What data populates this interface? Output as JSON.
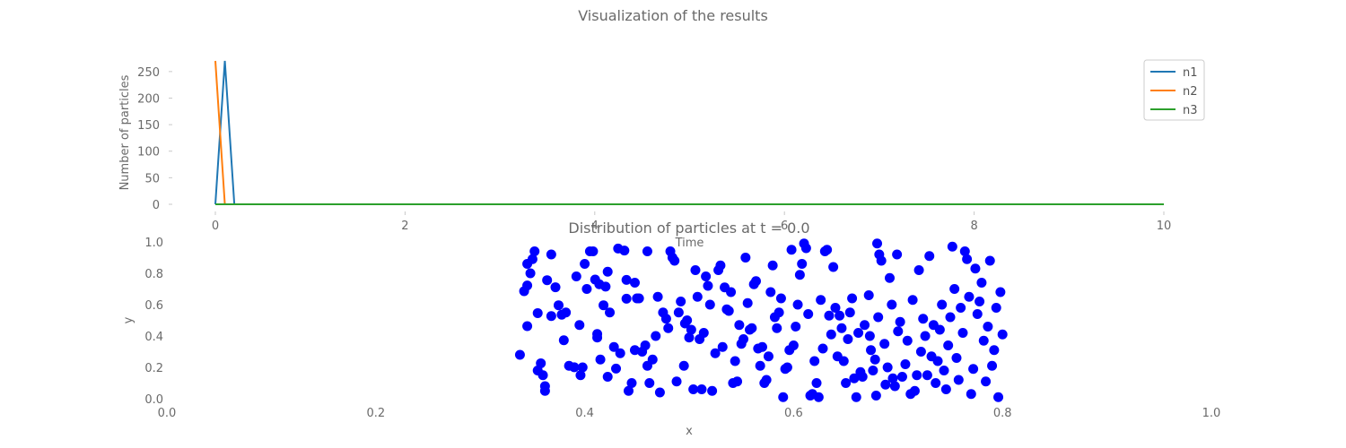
{
  "figure": {
    "suptitle": "Visualization of the results"
  },
  "chart_data": [
    {
      "type": "line",
      "title": "",
      "xlabel": "Time",
      "ylabel": "Number of particles",
      "xlim": [
        0,
        10
      ],
      "ylim": [
        0,
        270
      ],
      "xticks": [
        0,
        2,
        4,
        6,
        8,
        10
      ],
      "xtick_labels": [
        "0",
        "2",
        "4",
        "6",
        "8",
        "10"
      ],
      "yticks": [
        0,
        50,
        100,
        150,
        200,
        250
      ],
      "ytick_labels": [
        "0",
        "50",
        "100",
        "150",
        "200",
        "250"
      ],
      "grid": false,
      "legend": "upper-right",
      "series": [
        {
          "name": "n1",
          "color": "#1f77b4",
          "x": [
            0,
            0.1,
            0.2,
            10
          ],
          "y": [
            0,
            270,
            0,
            0
          ]
        },
        {
          "name": "n2",
          "color": "#ff7f0e",
          "x": [
            0,
            0.1,
            10
          ],
          "y": [
            270,
            0,
            0
          ]
        },
        {
          "name": "n3",
          "color": "#2ca02c",
          "x": [
            0,
            10
          ],
          "y": [
            0,
            0
          ]
        }
      ]
    },
    {
      "type": "scatter",
      "title": "Distribution of particles at t = 0.0",
      "xlabel": "x",
      "ylabel": "y",
      "xlim": [
        0,
        1
      ],
      "ylim": [
        0,
        1
      ],
      "xticks": [
        0,
        0.2,
        0.4,
        0.6,
        0.8,
        1.0
      ],
      "xtick_labels": [
        "0.0",
        "0.2",
        "0.4",
        "0.6",
        "0.8",
        "1.0"
      ],
      "yticks": [
        0,
        0.2,
        0.4,
        0.6,
        0.8,
        1.0
      ],
      "ytick_labels": [
        "0.0",
        "0.2",
        "0.4",
        "0.6",
        "0.8",
        "1.0"
      ],
      "grid": false,
      "point_color": "#0000ff",
      "points": [
        [
          0.338,
          0.28
        ],
        [
          0.345,
          0.463
        ],
        [
          0.342,
          0.686
        ],
        [
          0.345,
          0.722
        ],
        [
          0.348,
          0.8
        ],
        [
          0.345,
          0.86
        ],
        [
          0.35,
          0.89
        ],
        [
          0.352,
          0.94
        ],
        [
          0.355,
          0.546
        ],
        [
          0.355,
          0.18
        ],
        [
          0.358,
          0.226
        ],
        [
          0.36,
          0.15
        ],
        [
          0.362,
          0.08
        ],
        [
          0.362,
          0.05
        ],
        [
          0.364,
          0.756
        ],
        [
          0.368,
          0.92
        ],
        [
          0.368,
          0.527
        ],
        [
          0.372,
          0.711
        ],
        [
          0.375,
          0.596
        ],
        [
          0.378,
          0.536
        ],
        [
          0.38,
          0.373
        ],
        [
          0.382,
          0.55
        ],
        [
          0.385,
          0.21
        ],
        [
          0.39,
          0.201
        ],
        [
          0.392,
          0.78
        ],
        [
          0.395,
          0.47
        ],
        [
          0.396,
          0.15
        ],
        [
          0.398,
          0.2
        ],
        [
          0.4,
          0.86
        ],
        [
          0.402,
          0.7
        ],
        [
          0.405,
          0.94
        ],
        [
          0.408,
          0.94
        ],
        [
          0.41,
          0.76
        ],
        [
          0.412,
          0.413
        ],
        [
          0.412,
          0.39
        ],
        [
          0.414,
          0.73
        ],
        [
          0.415,
          0.25
        ],
        [
          0.418,
          0.596
        ],
        [
          0.42,
          0.715
        ],
        [
          0.422,
          0.81
        ],
        [
          0.422,
          0.14
        ],
        [
          0.424,
          0.55
        ],
        [
          0.428,
          0.33
        ],
        [
          0.43,
          0.192
        ],
        [
          0.432,
          0.958
        ],
        [
          0.434,
          0.29
        ],
        [
          0.438,
          0.945
        ],
        [
          0.44,
          0.758
        ],
        [
          0.44,
          0.638
        ],
        [
          0.442,
          0.05
        ],
        [
          0.445,
          0.1
        ],
        [
          0.448,
          0.31
        ],
        [
          0.448,
          0.74
        ],
        [
          0.45,
          0.64
        ],
        [
          0.452,
          0.64
        ],
        [
          0.455,
          0.3
        ],
        [
          0.458,
          0.34
        ],
        [
          0.46,
          0.94
        ],
        [
          0.46,
          0.21
        ],
        [
          0.462,
          0.1
        ],
        [
          0.465,
          0.25
        ],
        [
          0.468,
          0.4
        ],
        [
          0.47,
          0.65
        ],
        [
          0.472,
          0.04
        ],
        [
          0.475,
          0.55
        ],
        [
          0.478,
          0.51
        ],
        [
          0.48,
          0.45
        ],
        [
          0.482,
          0.94
        ],
        [
          0.484,
          0.9
        ],
        [
          0.486,
          0.88
        ],
        [
          0.488,
          0.11
        ],
        [
          0.49,
          0.55
        ],
        [
          0.492,
          0.62
        ],
        [
          0.495,
          0.21
        ],
        [
          0.496,
          0.48
        ],
        [
          0.498,
          0.5
        ],
        [
          0.5,
          0.39
        ],
        [
          0.502,
          0.44
        ],
        [
          0.504,
          0.06
        ],
        [
          0.506,
          0.82
        ],
        [
          0.508,
          0.65
        ],
        [
          0.51,
          0.38
        ],
        [
          0.512,
          0.06
        ],
        [
          0.514,
          0.42
        ],
        [
          0.516,
          0.78
        ],
        [
          0.518,
          0.72
        ],
        [
          0.52,
          0.6
        ],
        [
          0.522,
          0.05
        ],
        [
          0.525,
          0.29
        ],
        [
          0.528,
          0.82
        ],
        [
          0.53,
          0.85
        ],
        [
          0.532,
          0.33
        ],
        [
          0.534,
          0.71
        ],
        [
          0.536,
          0.57
        ],
        [
          0.538,
          0.56
        ],
        [
          0.54,
          0.68
        ],
        [
          0.542,
          0.1
        ],
        [
          0.544,
          0.24
        ],
        [
          0.546,
          0.11
        ],
        [
          0.548,
          0.47
        ],
        [
          0.55,
          0.35
        ],
        [
          0.552,
          0.38
        ],
        [
          0.554,
          0.9
        ],
        [
          0.556,
          0.61
        ],
        [
          0.558,
          0.44
        ],
        [
          0.56,
          0.45
        ],
        [
          0.562,
          0.73
        ],
        [
          0.564,
          0.75
        ],
        [
          0.566,
          0.32
        ],
        [
          0.568,
          0.21
        ],
        [
          0.57,
          0.33
        ],
        [
          0.572,
          0.1
        ],
        [
          0.574,
          0.12
        ],
        [
          0.576,
          0.27
        ],
        [
          0.578,
          0.68
        ],
        [
          0.58,
          0.85
        ],
        [
          0.582,
          0.52
        ],
        [
          0.584,
          0.45
        ],
        [
          0.586,
          0.55
        ],
        [
          0.588,
          0.64
        ],
        [
          0.59,
          0.01
        ],
        [
          0.592,
          0.19
        ],
        [
          0.594,
          0.2
        ],
        [
          0.596,
          0.31
        ],
        [
          0.598,
          0.95
        ],
        [
          0.6,
          0.34
        ],
        [
          0.602,
          0.46
        ],
        [
          0.604,
          0.6
        ],
        [
          0.606,
          0.79
        ],
        [
          0.608,
          0.86
        ],
        [
          0.61,
          0.99
        ],
        [
          0.612,
          0.96
        ],
        [
          0.614,
          0.54
        ],
        [
          0.616,
          0.02
        ],
        [
          0.618,
          0.03
        ],
        [
          0.62,
          0.24
        ],
        [
          0.622,
          0.1
        ],
        [
          0.624,
          0.01
        ],
        [
          0.626,
          0.63
        ],
        [
          0.628,
          0.32
        ],
        [
          0.63,
          0.94
        ],
        [
          0.632,
          0.95
        ],
        [
          0.634,
          0.53
        ],
        [
          0.636,
          0.41
        ],
        [
          0.638,
          0.84
        ],
        [
          0.64,
          0.58
        ],
        [
          0.642,
          0.27
        ],
        [
          0.644,
          0.53
        ],
        [
          0.646,
          0.45
        ],
        [
          0.648,
          0.24
        ],
        [
          0.65,
          0.1
        ],
        [
          0.652,
          0.38
        ],
        [
          0.654,
          0.55
        ],
        [
          0.656,
          0.64
        ],
        [
          0.658,
          0.13
        ],
        [
          0.66,
          0.01
        ],
        [
          0.662,
          0.42
        ],
        [
          0.664,
          0.17
        ],
        [
          0.666,
          0.14
        ],
        [
          0.668,
          0.47
        ],
        [
          0.672,
          0.66
        ],
        [
          0.673,
          0.4
        ],
        [
          0.674,
          0.31
        ],
        [
          0.676,
          0.18
        ],
        [
          0.678,
          0.25
        ],
        [
          0.679,
          0.02
        ],
        [
          0.68,
          0.99
        ],
        [
          0.681,
          0.52
        ],
        [
          0.682,
          0.92
        ],
        [
          0.684,
          0.88
        ],
        [
          0.687,
          0.35
        ],
        [
          0.688,
          0.09
        ],
        [
          0.69,
          0.2
        ],
        [
          0.692,
          0.77
        ],
        [
          0.694,
          0.6
        ],
        [
          0.695,
          0.13
        ],
        [
          0.697,
          0.08
        ],
        [
          0.699,
          0.92
        ],
        [
          0.7,
          0.43
        ],
        [
          0.702,
          0.49
        ],
        [
          0.704,
          0.14
        ],
        [
          0.707,
          0.22
        ],
        [
          0.709,
          0.37
        ],
        [
          0.712,
          0.03
        ],
        [
          0.714,
          0.63
        ],
        [
          0.716,
          0.05
        ],
        [
          0.718,
          0.15
        ],
        [
          0.72,
          0.82
        ],
        [
          0.722,
          0.3
        ],
        [
          0.724,
          0.51
        ],
        [
          0.726,
          0.4
        ],
        [
          0.728,
          0.15
        ],
        [
          0.73,
          0.91
        ],
        [
          0.732,
          0.27
        ],
        [
          0.734,
          0.47
        ],
        [
          0.736,
          0.1
        ],
        [
          0.738,
          0.24
        ],
        [
          0.74,
          0.44
        ],
        [
          0.742,
          0.6
        ],
        [
          0.744,
          0.18
        ],
        [
          0.746,
          0.06
        ],
        [
          0.748,
          0.34
        ],
        [
          0.75,
          0.52
        ],
        [
          0.752,
          0.97
        ],
        [
          0.754,
          0.7
        ],
        [
          0.756,
          0.26
        ],
        [
          0.758,
          0.12
        ],
        [
          0.76,
          0.58
        ],
        [
          0.762,
          0.42
        ],
        [
          0.764,
          0.94
        ],
        [
          0.766,
          0.89
        ],
        [
          0.768,
          0.65
        ],
        [
          0.77,
          0.03
        ],
        [
          0.772,
          0.19
        ],
        [
          0.774,
          0.83
        ],
        [
          0.776,
          0.54
        ],
        [
          0.778,
          0.62
        ],
        [
          0.78,
          0.74
        ],
        [
          0.782,
          0.37
        ],
        [
          0.784,
          0.11
        ],
        [
          0.786,
          0.46
        ],
        [
          0.788,
          0.88
        ],
        [
          0.79,
          0.21
        ],
        [
          0.792,
          0.31
        ],
        [
          0.794,
          0.58
        ],
        [
          0.796,
          0.01
        ],
        [
          0.798,
          0.68
        ],
        [
          0.8,
          0.41
        ]
      ]
    }
  ]
}
